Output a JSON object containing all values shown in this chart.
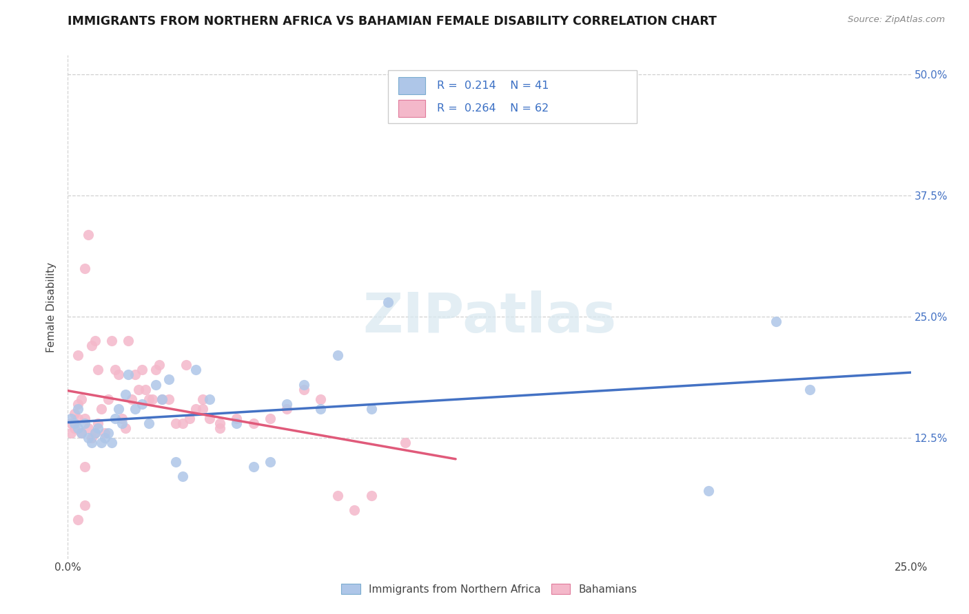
{
  "title": "IMMIGRANTS FROM NORTHERN AFRICA VS BAHAMIAN FEMALE DISABILITY CORRELATION CHART",
  "source": "Source: ZipAtlas.com",
  "ylabel": "Female Disability",
  "legend_bottom": [
    "Immigrants from Northern Africa",
    "Bahamians"
  ],
  "series1_label": "R =  0.214    N = 41",
  "series2_label": "R =  0.264    N = 62",
  "series1_color": "#aec6e8",
  "series2_color": "#f4b8ca",
  "trend1_color": "#4472c4",
  "trend2_color": "#e05a7a",
  "trend1_dashed_color": "#b0b0b0",
  "xlim": [
    0.0,
    0.25
  ],
  "ylim": [
    0.0,
    0.52
  ],
  "ytick_positions": [
    0.125,
    0.25,
    0.375,
    0.5
  ],
  "ytick_labels": [
    "12.5%",
    "25.0%",
    "37.5%",
    "50.0%"
  ],
  "background_color": "#ffffff",
  "grid_color": "#d0d0d0",
  "watermark_text": "ZIPatlas",
  "series1_x": [
    0.001,
    0.002,
    0.003,
    0.003,
    0.004,
    0.005,
    0.006,
    0.007,
    0.008,
    0.009,
    0.01,
    0.011,
    0.012,
    0.013,
    0.014,
    0.015,
    0.016,
    0.017,
    0.018,
    0.02,
    0.022,
    0.024,
    0.026,
    0.028,
    0.03,
    0.032,
    0.034,
    0.038,
    0.042,
    0.05,
    0.055,
    0.06,
    0.065,
    0.07,
    0.075,
    0.08,
    0.09,
    0.095,
    0.19,
    0.21,
    0.22
  ],
  "series1_y": [
    0.145,
    0.14,
    0.135,
    0.155,
    0.13,
    0.14,
    0.125,
    0.12,
    0.13,
    0.135,
    0.12,
    0.125,
    0.13,
    0.12,
    0.145,
    0.155,
    0.14,
    0.17,
    0.19,
    0.155,
    0.16,
    0.14,
    0.18,
    0.165,
    0.185,
    0.1,
    0.085,
    0.195,
    0.165,
    0.14,
    0.095,
    0.1,
    0.16,
    0.18,
    0.155,
    0.21,
    0.155,
    0.265,
    0.07,
    0.245,
    0.175
  ],
  "series2_x": [
    0.001,
    0.001,
    0.002,
    0.002,
    0.003,
    0.003,
    0.004,
    0.005,
    0.005,
    0.006,
    0.007,
    0.008,
    0.009,
    0.01,
    0.011,
    0.012,
    0.013,
    0.014,
    0.015,
    0.016,
    0.017,
    0.018,
    0.019,
    0.02,
    0.021,
    0.022,
    0.023,
    0.024,
    0.025,
    0.026,
    0.027,
    0.028,
    0.03,
    0.032,
    0.034,
    0.036,
    0.038,
    0.04,
    0.042,
    0.045,
    0.05,
    0.055,
    0.06,
    0.065,
    0.07,
    0.075,
    0.08,
    0.085,
    0.09,
    0.1,
    0.005,
    0.006,
    0.008,
    0.003,
    0.004,
    0.009,
    0.007,
    0.035,
    0.04,
    0.045,
    0.003,
    0.005
  ],
  "series2_y": [
    0.14,
    0.13,
    0.15,
    0.135,
    0.145,
    0.16,
    0.13,
    0.145,
    0.3,
    0.135,
    0.125,
    0.13,
    0.14,
    0.155,
    0.13,
    0.165,
    0.225,
    0.195,
    0.19,
    0.145,
    0.135,
    0.225,
    0.165,
    0.19,
    0.175,
    0.195,
    0.175,
    0.165,
    0.165,
    0.195,
    0.2,
    0.165,
    0.165,
    0.14,
    0.14,
    0.145,
    0.155,
    0.165,
    0.145,
    0.135,
    0.145,
    0.14,
    0.145,
    0.155,
    0.175,
    0.165,
    0.065,
    0.05,
    0.065,
    0.12,
    0.095,
    0.335,
    0.225,
    0.21,
    0.165,
    0.195,
    0.22,
    0.2,
    0.155,
    0.14,
    0.04,
    0.055
  ]
}
